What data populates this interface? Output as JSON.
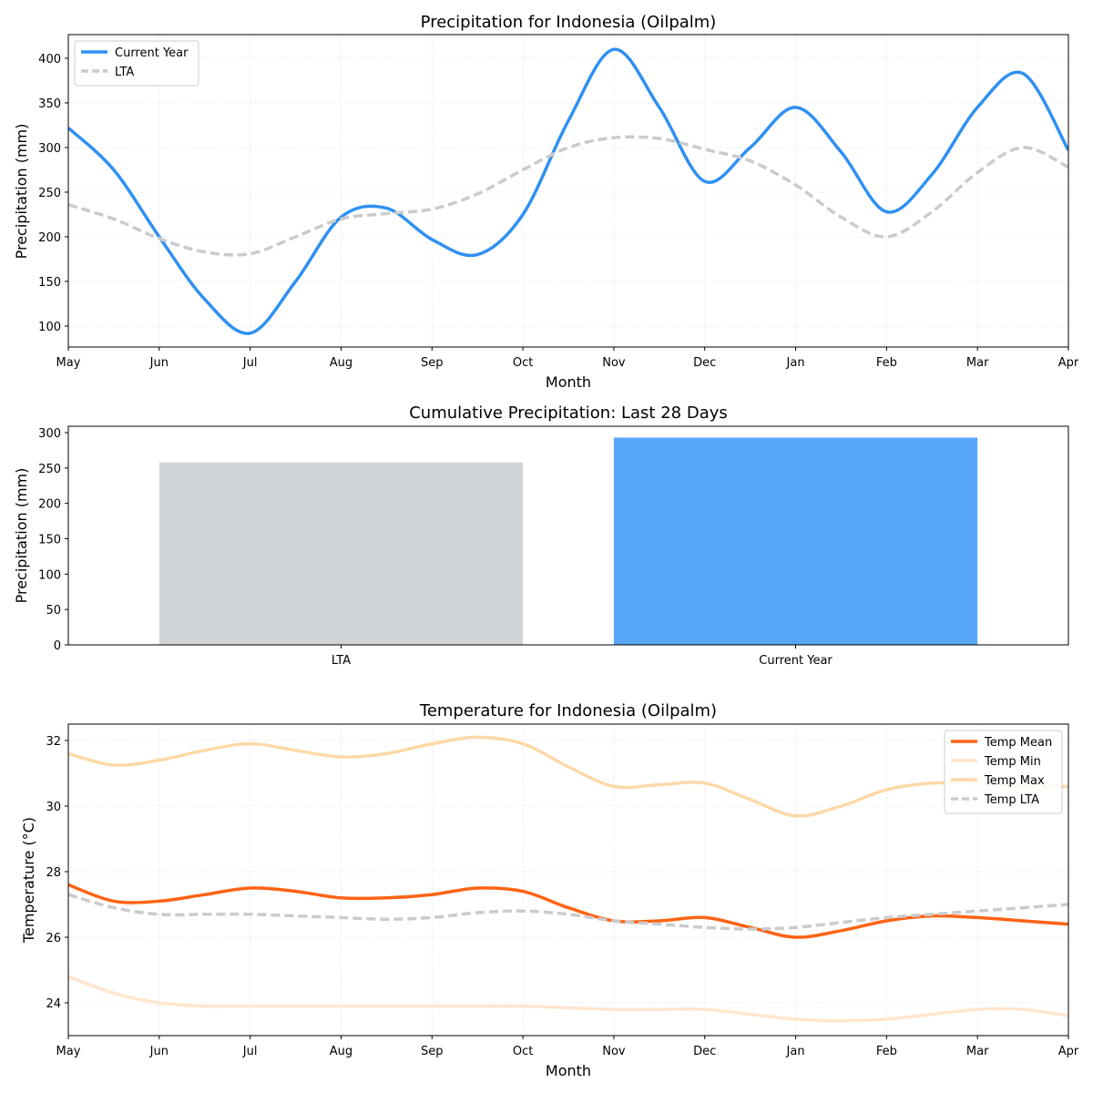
{
  "chart_data": [
    {
      "type": "line",
      "title": "Precipitation for Indonesia (Oilpalm)",
      "xlabel": "Month",
      "ylabel": "Precipitation (mm)",
      "x_ticks": [
        "May",
        "Jun",
        "Jul",
        "Aug",
        "Sep",
        "Oct",
        "Nov",
        "Dec",
        "Jan",
        "Feb",
        "Mar",
        "Apr"
      ],
      "y_ticks": [
        100,
        150,
        200,
        250,
        300,
        350,
        400
      ],
      "xlim": [
        0,
        11
      ],
      "ylim": [
        76.5,
        426.5
      ],
      "grid": true,
      "legend_position": "top-left",
      "x": [
        0,
        0.5,
        1,
        1.5,
        2,
        2.5,
        3,
        3.5,
        4,
        4.5,
        5,
        5.5,
        6,
        6.5,
        7,
        7.5,
        8,
        8.5,
        9,
        9.5,
        10,
        10.5,
        11
      ],
      "series": [
        {
          "name": "Current Year",
          "color": "#3090f2",
          "dashed": false,
          "values": [
            322,
            275,
            200,
            130,
            92,
            150,
            222,
            232,
            197,
            180,
            225,
            330,
            410,
            345,
            262,
            300,
            345,
            295,
            228,
            270,
            345,
            383,
            297
          ]
        },
        {
          "name": "LTA",
          "color": "#c9cbcc",
          "dashed": true,
          "values": [
            236,
            220,
            198,
            183,
            181,
            200,
            220,
            226,
            231,
            248,
            275,
            300,
            311,
            310,
            298,
            285,
            258,
            222,
            200,
            228,
            272,
            300,
            278
          ]
        }
      ]
    },
    {
      "type": "bar",
      "title": "Cumulative Precipitation: Last 28 Days",
      "xlabel": "",
      "ylabel": "Precipitation (mm)",
      "categories": [
        "LTA",
        "Current Year"
      ],
      "values": [
        258,
        293
      ],
      "colors": [
        "#d1d4d7",
        "#58a6fa"
      ],
      "y_ticks": [
        0,
        50,
        100,
        150,
        200,
        250,
        300
      ],
      "ylim": [
        0,
        309
      ]
    },
    {
      "type": "line",
      "title": "Temperature for Indonesia (Oilpalm)",
      "xlabel": "Month",
      "ylabel": "Temperature (°C)",
      "x_ticks": [
        "May",
        "Jun",
        "Jul",
        "Aug",
        "Sep",
        "Oct",
        "Nov",
        "Dec",
        "Jan",
        "Feb",
        "Mar",
        "Apr"
      ],
      "y_ticks": [
        24,
        26,
        28,
        30,
        32
      ],
      "xlim": [
        0,
        11
      ],
      "ylim": [
        23.0,
        32.5
      ],
      "grid": true,
      "legend_position": "top-right",
      "x": [
        0,
        0.5,
        1,
        1.5,
        2,
        2.5,
        3,
        3.5,
        4,
        4.5,
        5,
        5.5,
        6,
        6.5,
        7,
        7.5,
        8,
        8.5,
        9,
        9.5,
        10,
        10.5,
        11
      ],
      "series": [
        {
          "name": "Temp Mean",
          "color": "#ff6314",
          "dashed": false,
          "values": [
            27.6,
            27.1,
            27.1,
            27.3,
            27.5,
            27.4,
            27.2,
            27.2,
            27.3,
            27.5,
            27.4,
            26.9,
            26.5,
            26.5,
            26.6,
            26.3,
            26.0,
            26.2,
            26.5,
            26.65,
            26.6,
            26.5,
            26.4
          ]
        },
        {
          "name": "Temp Min",
          "color": "#ffe6cf",
          "dashed": false,
          "values": [
            24.8,
            24.3,
            24.0,
            23.9,
            23.9,
            23.9,
            23.9,
            23.9,
            23.9,
            23.9,
            23.9,
            23.85,
            23.8,
            23.8,
            23.8,
            23.65,
            23.5,
            23.45,
            23.5,
            23.65,
            23.8,
            23.8,
            23.6
          ]
        },
        {
          "name": "Temp Max",
          "color": "#fdd9a8",
          "dashed": false,
          "values": [
            31.6,
            31.25,
            31.4,
            31.7,
            31.9,
            31.7,
            31.5,
            31.6,
            31.9,
            32.1,
            31.9,
            31.2,
            30.6,
            30.65,
            30.7,
            30.2,
            29.7,
            30.0,
            30.5,
            30.7,
            30.7,
            30.6,
            30.6
          ]
        },
        {
          "name": "Temp LTA",
          "color": "#c9cbcc",
          "dashed": true,
          "values": [
            27.3,
            26.9,
            26.7,
            26.7,
            26.7,
            26.65,
            26.6,
            26.55,
            26.6,
            26.75,
            26.8,
            26.7,
            26.5,
            26.4,
            26.3,
            26.25,
            26.3,
            26.45,
            26.6,
            26.7,
            26.8,
            26.9,
            27.0
          ]
        }
      ]
    }
  ]
}
